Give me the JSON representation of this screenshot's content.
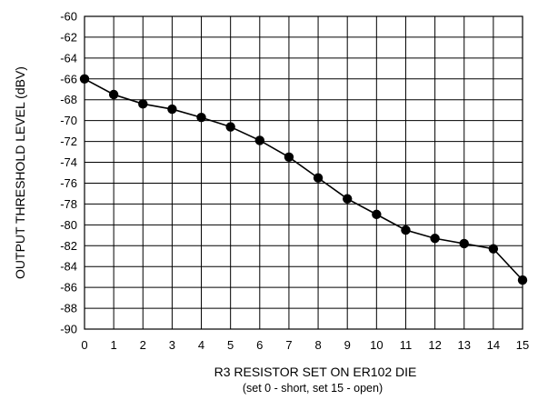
{
  "chart_data": {
    "type": "line",
    "xlabel": "R3 RESISTOR SET ON ER102 DIE",
    "xlabel_sub": "(set 0 - short, set 15 - open)",
    "ylabel": "OUTPUT THRESHOLD  LEVEL (dBV)",
    "xlim": [
      0,
      15
    ],
    "ylim": [
      -90,
      -60
    ],
    "x_ticks": [
      0,
      1,
      2,
      3,
      4,
      5,
      6,
      7,
      8,
      9,
      10,
      11,
      12,
      13,
      14,
      15
    ],
    "y_ticks": [
      -60,
      -62,
      -64,
      -66,
      -68,
      -70,
      -72,
      -74,
      -76,
      -78,
      -80,
      -82,
      -84,
      -86,
      -88,
      -90
    ],
    "grid": true,
    "x": [
      0,
      1,
      2,
      3,
      4,
      5,
      6,
      7,
      8,
      9,
      10,
      11,
      12,
      13,
      14,
      15
    ],
    "y": [
      -66.0,
      -67.5,
      -68.4,
      -68.9,
      -69.7,
      -70.6,
      -71.9,
      -73.5,
      -75.5,
      -77.5,
      -79.0,
      -80.5,
      -81.3,
      -81.8,
      -82.3,
      -85.3
    ],
    "colors": {
      "line": "#000000",
      "marker": "#000000",
      "grid": "#000000"
    }
  }
}
